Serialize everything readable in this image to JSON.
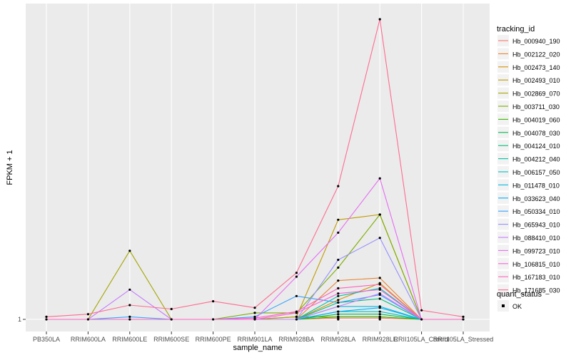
{
  "chart_data": {
    "type": "line",
    "xlabel": "sample_name",
    "ylabel": "FPKM + 1",
    "y_ticks": [
      "1"
    ],
    "grid": true,
    "legend_position": "right",
    "categories": [
      "PB350LA",
      "RRIM600LA",
      "RRIM600LE",
      "RRIM600SE",
      "RRIM600PE",
      "RRIM901LA",
      "RRIM928BA",
      "RRIM928LA",
      "RRIM928LE",
      "RRII105LA_Control",
      "RRII105LA_Stressed"
    ],
    "legend_title": "tracking_id",
    "quant_legend_title": "quant_status",
    "quant_legend_label": "OK",
    "series": [
      {
        "name": "Hb_000940_190",
        "color": "#F8766D",
        "values": [
          1.0,
          1.0,
          1.0,
          1.0,
          1.0,
          1.0,
          1.0,
          1.01,
          1.01,
          1.0,
          1.0
        ]
      },
      {
        "name": "Hb_002122_020",
        "color": "#EA8331",
        "values": [
          1.0,
          1.0,
          1.0,
          1.0,
          1.0,
          1.0,
          1.0,
          1.3,
          1.32,
          1.0,
          1.0
        ]
      },
      {
        "name": "Hb_002473_140",
        "color": "#D89000",
        "values": [
          1.0,
          1.0,
          1.0,
          1.0,
          1.0,
          1.0,
          1.0,
          1.15,
          1.28,
          1.0,
          1.0
        ]
      },
      {
        "name": "Hb_002493_010",
        "color": "#C09B00",
        "values": [
          1.0,
          1.0,
          1.0,
          1.0,
          1.0,
          1.0,
          1.02,
          1.77,
          1.81,
          1.0,
          1.0
        ]
      },
      {
        "name": "Hb_002869_070",
        "color": "#A3A500",
        "values": [
          1.0,
          1.0,
          1.53,
          1.0,
          1.0,
          1.0,
          1.02,
          1.02,
          1.02,
          1.0,
          1.0
        ]
      },
      {
        "name": "Hb_003711_030",
        "color": "#7CAE00",
        "values": [
          1.0,
          1.0,
          1.0,
          1.0,
          1.0,
          1.05,
          1.05,
          1.4,
          1.81,
          1.0,
          1.0
        ]
      },
      {
        "name": "Hb_004019_060",
        "color": "#39B600",
        "values": [
          1.0,
          1.0,
          1.0,
          1.0,
          1.0,
          1.0,
          1.0,
          1.02,
          1.02,
          1.0,
          1.0
        ]
      },
      {
        "name": "Hb_004078_030",
        "color": "#00BB4E",
        "values": [
          1.0,
          1.0,
          1.0,
          1.0,
          1.0,
          1.0,
          1.0,
          1.04,
          1.04,
          1.0,
          1.0
        ]
      },
      {
        "name": "Hb_004124_010",
        "color": "#00BF7D",
        "values": [
          1.0,
          1.0,
          1.0,
          1.0,
          1.0,
          1.0,
          1.0,
          1.13,
          1.16,
          1.0,
          1.0
        ]
      },
      {
        "name": "Hb_004212_040",
        "color": "#00C1A3",
        "values": [
          1.0,
          1.0,
          1.0,
          1.0,
          1.0,
          1.0,
          1.0,
          1.18,
          1.24,
          1.0,
          1.0
        ]
      },
      {
        "name": "Hb_006157_050",
        "color": "#00BFC4",
        "values": [
          1.0,
          1.0,
          1.0,
          1.0,
          1.0,
          1.0,
          1.0,
          1.06,
          1.06,
          1.0,
          1.0
        ]
      },
      {
        "name": "Hb_011478_010",
        "color": "#00BAE0",
        "values": [
          1.0,
          1.0,
          1.0,
          1.0,
          1.0,
          1.0,
          1.0,
          1.1,
          1.1,
          1.0,
          1.0
        ]
      },
      {
        "name": "Hb_033623_040",
        "color": "#00B0F6",
        "values": [
          1.0,
          1.0,
          1.0,
          1.0,
          1.0,
          1.0,
          1.0,
          1.06,
          1.09,
          1.0,
          1.0
        ]
      },
      {
        "name": "Hb_050334_010",
        "color": "#35A2FF",
        "values": [
          1.0,
          1.0,
          1.02,
          1.0,
          1.0,
          1.02,
          1.18,
          1.13,
          1.19,
          1.0,
          1.0
        ]
      },
      {
        "name": "Hb_065943_010",
        "color": "#9590FF",
        "values": [
          1.0,
          1.0,
          1.0,
          1.0,
          1.0,
          1.0,
          1.0,
          1.46,
          1.63,
          1.0,
          1.0
        ]
      },
      {
        "name": "Hb_088410_010",
        "color": "#C77CFF",
        "values": [
          1.0,
          1.0,
          1.23,
          1.0,
          1.0,
          1.0,
          1.0,
          1.1,
          1.2,
          1.0,
          1.0
        ]
      },
      {
        "name": "Hb_099723_010",
        "color": "#E76BF3",
        "values": [
          1.0,
          1.0,
          1.0,
          1.0,
          1.0,
          1.0,
          1.33,
          1.67,
          2.09,
          1.0,
          1.0
        ]
      },
      {
        "name": "Hb_106815_010",
        "color": "#FA62DB",
        "values": [
          1.0,
          1.0,
          1.0,
          1.0,
          1.0,
          1.0,
          1.05,
          1.2,
          1.23,
          1.0,
          1.0
        ]
      },
      {
        "name": "Hb_167183_010",
        "color": "#FF62BC",
        "values": [
          1.0,
          1.0,
          1.0,
          1.0,
          1.0,
          1.01,
          1.06,
          1.24,
          1.27,
          1.0,
          1.0
        ]
      },
      {
        "name": "Hb_171685_030",
        "color": "#FF6C91",
        "values": [
          1.02,
          1.04,
          1.11,
          1.08,
          1.14,
          1.09,
          1.36,
          2.03,
          3.32,
          1.07,
          1.02
        ]
      }
    ]
  }
}
